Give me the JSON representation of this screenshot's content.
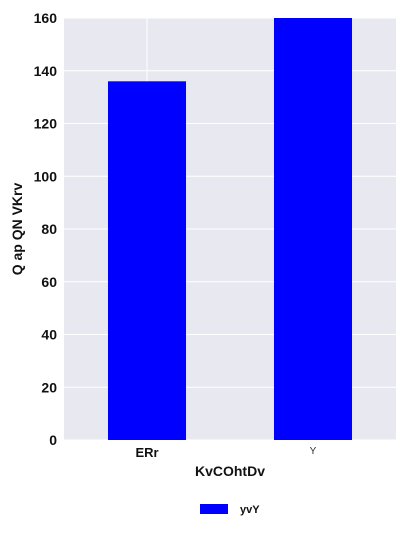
{
  "chart_data": {
    "type": "bar",
    "title": "",
    "xlabel": "KvCOhtDv",
    "ylabel": "Q ap QN VKrv",
    "categories": [
      "ERr",
      "Y"
    ],
    "series": [
      {
        "name": "yvY",
        "values": [
          136,
          160
        ],
        "color": "#0000ff"
      }
    ],
    "ylim": [
      0,
      160
    ],
    "yticks": [
      0,
      20,
      40,
      60,
      80,
      100,
      120,
      140,
      160
    ],
    "grid": true,
    "grid_color": "#ffffff",
    "plot_background": "#e8e8f0",
    "legend_position": "bottom-center"
  }
}
